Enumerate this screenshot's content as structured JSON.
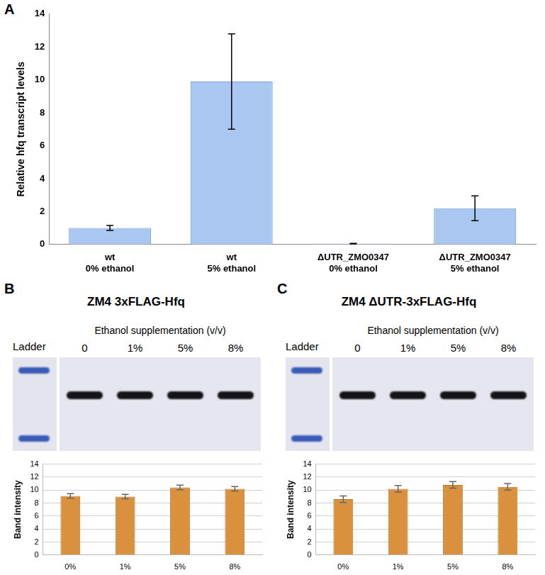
{
  "chart_data": [
    {
      "type": "bar",
      "y_label": "Relative hfq transcript levels",
      "categories": [
        [
          "wt",
          "0% ethanol"
        ],
        [
          "wt",
          "5% ethanol"
        ],
        [
          "ΔUTR_ZMO0347",
          "0% ethanol"
        ],
        [
          "ΔUTR_ZMO0347",
          "5% ethanol"
        ]
      ],
      "values": [
        1.0,
        9.9,
        0.05,
        2.2
      ],
      "errors": [
        0.15,
        2.9,
        0.02,
        0.75
      ],
      "color": "#a9c7f0",
      "ylim": [
        0,
        14
      ],
      "yticks": [
        0,
        2,
        4,
        6,
        8,
        10,
        12,
        14
      ],
      "grid": false
    },
    {
      "type": "bar",
      "y_label": "Band intensity",
      "categories": [
        "0%",
        "1%",
        "5%",
        "8%"
      ],
      "values": [
        9.1,
        9.0,
        10.4,
        10.2
      ],
      "errors": [
        0.35,
        0.35,
        0.35,
        0.35
      ],
      "color": "#d9913e",
      "ylim": [
        0,
        14
      ],
      "yticks": [
        0,
        2,
        4,
        6,
        8,
        10,
        12,
        14
      ],
      "grid": true
    },
    {
      "type": "bar",
      "y_label": "Band intensity",
      "categories": [
        "0%",
        "1%",
        "5%",
        "8%"
      ],
      "values": [
        8.6,
        10.2,
        10.8,
        10.5
      ],
      "errors": [
        0.5,
        0.5,
        0.5,
        0.5
      ],
      "color": "#d9913e",
      "ylim": [
        0,
        14
      ],
      "yticks": [
        0,
        2,
        4,
        6,
        8,
        10,
        12,
        14
      ],
      "grid": true
    }
  ],
  "panel_labels": [
    "A",
    "B",
    "C"
  ],
  "blots": [
    {
      "title": "ZM4 3xFLAG-Hfq",
      "subtitle": "Ethanol supplementation (v/v)",
      "ladder": "Ladder",
      "lanes": [
        "0",
        "1%",
        "5%",
        "8%"
      ]
    },
    {
      "title": "ZM4 ΔUTR-3xFLAG-Hfq",
      "subtitle": "Ethanol supplementation (v/v)",
      "ladder": "Ladder",
      "lanes": [
        "0",
        "1%",
        "5%",
        "8%"
      ]
    }
  ]
}
